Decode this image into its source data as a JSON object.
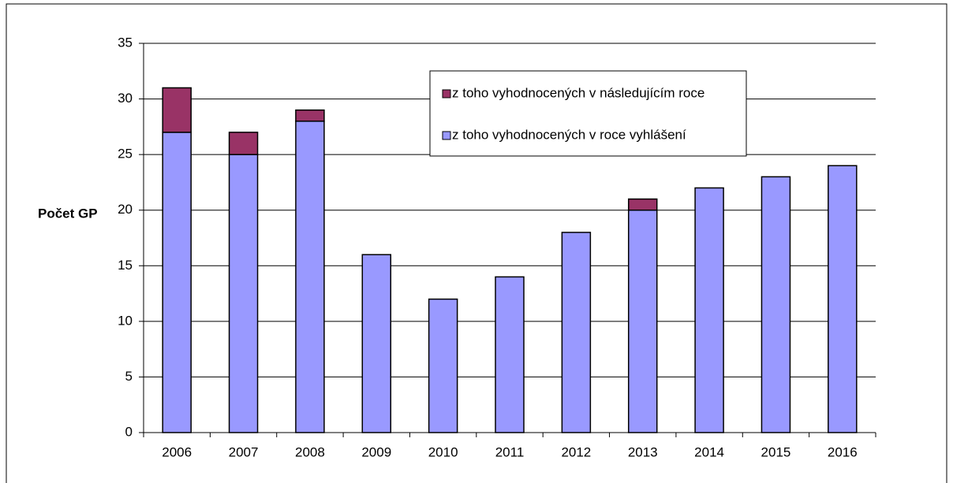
{
  "chart_data": {
    "type": "stacked_bar",
    "y_label": "Počet GP",
    "categories": [
      "2006",
      "2007",
      "2008",
      "2009",
      "2010",
      "2011",
      "2012",
      "2013",
      "2014",
      "2015",
      "2016"
    ],
    "series": [
      {
        "name": "z toho vyhodnocených v roce vyhlášení",
        "color": "#9999ff",
        "values": [
          27,
          25,
          28,
          16,
          12,
          14,
          18,
          20,
          22,
          23,
          24
        ]
      },
      {
        "name": "z toho vyhodnocených v následujícím roce",
        "color": "#993366",
        "values": [
          4,
          2,
          1,
          0,
          0,
          0,
          0,
          1,
          0,
          0,
          0
        ]
      }
    ],
    "ylim": [
      0,
      35
    ],
    "yticks": [
      0,
      5,
      10,
      15,
      20,
      25,
      30,
      35
    ],
    "grid": true,
    "legend": "upper center"
  }
}
